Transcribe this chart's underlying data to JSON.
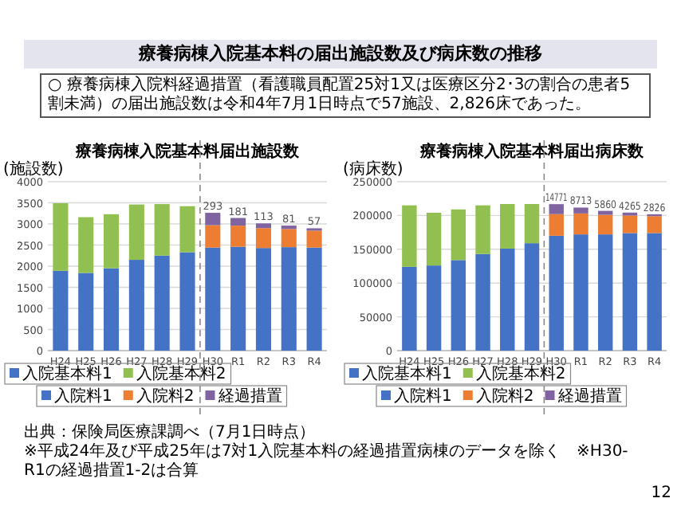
{
  "chart_data": [
    {
      "type": "bar",
      "stacked": true,
      "title": "療養病棟入院基本料届出施設数",
      "ylabel": "(施設数)",
      "categories": [
        "H24",
        "H25",
        "H26",
        "H27",
        "H28",
        "H29",
        "H30",
        "R1",
        "R2",
        "R3",
        "R4"
      ],
      "series": [
        {
          "name": "入院基本料1",
          "color": "#4472c4",
          "values": [
            1890,
            1840,
            1950,
            2150,
            2250,
            2330,
            null,
            null,
            null,
            null,
            null
          ]
        },
        {
          "name": "入院基本料2",
          "color": "#92c050",
          "values": [
            1600,
            1320,
            1280,
            1310,
            1220,
            1090,
            null,
            null,
            null,
            null,
            null
          ]
        },
        {
          "name": "入院料1",
          "color": "#4472c4",
          "values": [
            null,
            null,
            null,
            null,
            null,
            null,
            2440,
            2460,
            2430,
            2450,
            2440
          ]
        },
        {
          "name": "入院料2",
          "color": "#ed7d31",
          "values": [
            null,
            null,
            null,
            null,
            null,
            null,
            530,
            500,
            470,
            430,
            400
          ]
        },
        {
          "name": "経過措置",
          "color": "#8064a2",
          "values": [
            null,
            null,
            null,
            null,
            null,
            null,
            293,
            181,
            113,
            81,
            57
          ],
          "value_labels": [
            null,
            null,
            null,
            null,
            null,
            null,
            "293",
            "181",
            "113",
            "81",
            "57"
          ]
        }
      ],
      "ylim": [
        0,
        4000
      ],
      "yticks": [
        0,
        500,
        1000,
        1500,
        2000,
        2500,
        3000,
        3500,
        4000
      ],
      "grid": "y",
      "legend": "bottom",
      "ref_lines": [
        {
          "axis": "x",
          "value": "H30",
          "line_style": "dashed",
          "color": "#888888"
        }
      ],
      "annotations": [
        "療養病棟入院基本料の届出施設数及び病床数の推移",
        "○ 療養病棟入院料経過措置（看護職員配置25対1又は医療区分2･3の割合の患者5割未満）の届出施設数は令和4年7月1日時点で57施設、2,826床であった。",
        "出典：保険局医療課調べ（7月1日時点）",
        "※平成24年及び平成25年は7対1入院基本料の経過措置病棟のデータを除く　※H30-R1の経過措置1-2は合算",
        "12"
      ]
    },
    {
      "type": "bar",
      "stacked": true,
      "title": "療養病棟入院基本料届出病床数",
      "ylabel": "(病床数)",
      "categories": [
        "H24",
        "H25",
        "H26",
        "H27",
        "H28",
        "H29",
        "H30",
        "R1",
        "R2",
        "R3",
        "R4"
      ],
      "series": [
        {
          "name": "入院基本料1",
          "color": "#4472c4",
          "values": [
            124000,
            126000,
            134000,
            143000,
            151000,
            159000,
            null,
            null,
            null,
            null,
            null
          ]
        },
        {
          "name": "入院基本料2",
          "color": "#92c050",
          "values": [
            91000,
            78000,
            75000,
            72000,
            66000,
            58000,
            null,
            null,
            null,
            null,
            null
          ]
        },
        {
          "name": "入院料1",
          "color": "#4472c4",
          "values": [
            null,
            null,
            null,
            null,
            null,
            null,
            170000,
            172000,
            172000,
            174000,
            174000
          ]
        },
        {
          "name": "入院料2",
          "color": "#ed7d31",
          "values": [
            null,
            null,
            null,
            null,
            null,
            null,
            32000,
            31000,
            29000,
            26000,
            25000
          ]
        },
        {
          "name": "経過措置",
          "color": "#8064a2",
          "values": [
            null,
            null,
            null,
            null,
            null,
            null,
            14771,
            8713,
            5860,
            4265,
            2826
          ],
          "value_labels": [
            null,
            null,
            null,
            null,
            null,
            null,
            "14771",
            "8713",
            "5860",
            "4265",
            "2826"
          ]
        }
      ],
      "ylim": [
        0,
        250000
      ],
      "yticks": [
        0,
        50000,
        100000,
        150000,
        200000,
        250000
      ],
      "grid": "y",
      "legend": "bottom",
      "ref_lines": [
        {
          "axis": "x",
          "value": "H30",
          "line_style": "dashed",
          "color": "#888888"
        }
      ]
    }
  ]
}
